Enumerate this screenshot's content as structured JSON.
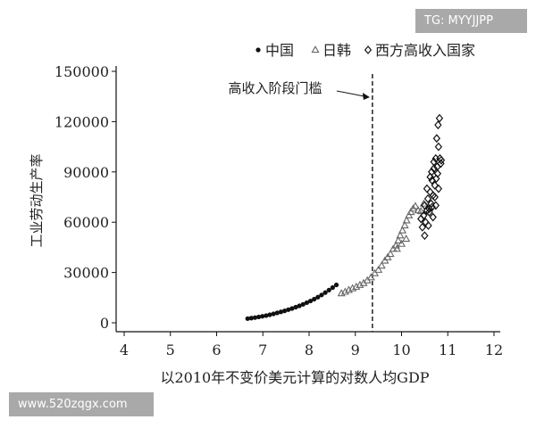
{
  "watermarks": {
    "top": "TG: MYYJJPP",
    "bottom": "www.520zqgx.com"
  },
  "chart_data": {
    "type": "scatter",
    "title": "",
    "xlabel": "以2010年不变价美元计算的对数人均GDP",
    "ylabel": "工业劳动生产率",
    "xlim": [
      4,
      12
    ],
    "ylim": [
      0,
      150000
    ],
    "xticks": [
      4,
      5,
      6,
      7,
      8,
      9,
      10,
      11,
      12
    ],
    "yticks": [
      0,
      30000,
      60000,
      90000,
      120000,
      150000
    ],
    "xtick_labels": [
      "4",
      "5",
      "6",
      "7",
      "8",
      "9",
      "10",
      "11",
      "12"
    ],
    "ytick_labels": [
      "0",
      "30000",
      "60000",
      "90000",
      "120000",
      "150000"
    ],
    "grid": false,
    "legend_position": "top",
    "threshold": {
      "x": 9.37,
      "label": "高收入阶段门槛"
    },
    "series": [
      {
        "name": "中国",
        "marker": "circle",
        "points": [
          [
            6.67,
            2500
          ],
          [
            6.75,
            2800
          ],
          [
            6.83,
            3100
          ],
          [
            6.91,
            3500
          ],
          [
            6.99,
            3900
          ],
          [
            7.07,
            4300
          ],
          [
            7.15,
            4800
          ],
          [
            7.23,
            5300
          ],
          [
            7.31,
            5900
          ],
          [
            7.39,
            6500
          ],
          [
            7.47,
            7100
          ],
          [
            7.55,
            7800
          ],
          [
            7.63,
            8500
          ],
          [
            7.71,
            9300
          ],
          [
            7.79,
            10100
          ],
          [
            7.87,
            11000
          ],
          [
            7.95,
            12000
          ],
          [
            8.03,
            13000
          ],
          [
            8.11,
            14100
          ],
          [
            8.19,
            15300
          ],
          [
            8.27,
            16600
          ],
          [
            8.35,
            18000
          ],
          [
            8.43,
            19500
          ],
          [
            8.51,
            21000
          ],
          [
            8.59,
            22600
          ]
        ]
      },
      {
        "name": "日韩",
        "marker": "triangle",
        "points": [
          [
            8.7,
            17500
          ],
          [
            8.78,
            18400
          ],
          [
            8.86,
            19500
          ],
          [
            8.94,
            20500
          ],
          [
            9.02,
            21400
          ],
          [
            9.1,
            22500
          ],
          [
            9.18,
            23600
          ],
          [
            9.26,
            25200
          ],
          [
            9.34,
            27000
          ],
          [
            9.42,
            29500
          ],
          [
            9.5,
            31500
          ],
          [
            9.57,
            34000
          ],
          [
            9.64,
            37000
          ],
          [
            9.7,
            39000
          ],
          [
            9.76,
            41000
          ],
          [
            9.82,
            44000
          ],
          [
            9.88,
            46000
          ],
          [
            9.93,
            49000
          ],
          [
            9.97,
            52000
          ],
          [
            10.02,
            55000
          ],
          [
            10.07,
            58000
          ],
          [
            10.11,
            61000
          ],
          [
            10.16,
            64000
          ],
          [
            10.2,
            66000
          ],
          [
            10.25,
            68000
          ],
          [
            10.3,
            69500
          ],
          [
            10.36,
            67000
          ],
          [
            10.42,
            66500
          ],
          [
            10.48,
            71000
          ],
          [
            9.9,
            44000
          ],
          [
            10.0,
            47000
          ],
          [
            10.1,
            50000
          ]
        ]
      },
      {
        "name": "西方高收入国家",
        "marker": "diamond",
        "points": [
          [
            10.42,
            62000
          ],
          [
            10.45,
            57000
          ],
          [
            10.48,
            64000
          ],
          [
            10.5,
            70000
          ],
          [
            10.52,
            60000
          ],
          [
            10.55,
            67000
          ],
          [
            10.57,
            74000
          ],
          [
            10.6,
            66000
          ],
          [
            10.62,
            78000
          ],
          [
            10.64,
            71000
          ],
          [
            10.66,
            85000
          ],
          [
            10.68,
            76000
          ],
          [
            10.7,
            92000
          ],
          [
            10.72,
            82000
          ],
          [
            10.74,
            98000
          ],
          [
            10.76,
            110000
          ],
          [
            10.77,
            93000
          ],
          [
            10.79,
            118000
          ],
          [
            10.8,
            105000
          ],
          [
            10.82,
            122000
          ],
          [
            10.83,
            98000
          ],
          [
            10.65,
            90000
          ],
          [
            10.7,
            96000
          ],
          [
            10.78,
            89000
          ],
          [
            10.85,
            95000
          ],
          [
            10.6,
            68000
          ],
          [
            10.55,
            80000
          ],
          [
            10.68,
            63000
          ],
          [
            10.74,
            70000
          ],
          [
            10.5,
            52000
          ],
          [
            10.58,
            58000
          ],
          [
            10.66,
            69000
          ],
          [
            10.72,
            75000
          ],
          [
            10.8,
            80000
          ],
          [
            10.86,
            97000
          ],
          [
            10.62,
            87000
          ],
          [
            10.75,
            86000
          ]
        ]
      }
    ]
  }
}
